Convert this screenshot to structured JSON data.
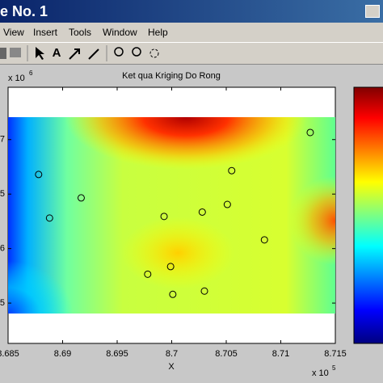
{
  "window": {
    "title": "e No. 1",
    "menu": [
      "View",
      "Insert",
      "Tools",
      "Window",
      "Help"
    ]
  },
  "chart_data": {
    "type": "scatter",
    "title": "Ket qua Kriging Do Rong",
    "x_label": "X",
    "x_multiplier": "x 10",
    "x_multiplier_power": "5",
    "y_multiplier": "x 10",
    "y_multiplier_power": "6",
    "x": [
      8.6878,
      8.6888,
      8.6917,
      8.6978,
      8.6993,
      8.6999,
      8.7001,
      8.7028,
      8.703,
      8.7051,
      8.7055,
      8.7085,
      8.7127
    ],
    "values": [
      2.36,
      1.56,
      1.93,
      0.53,
      1.59,
      0.67,
      0.16,
      1.67,
      0.22,
      1.81,
      2.43,
      1.16,
      3.13
    ],
    "xlim": [
      8.685,
      8.715
    ],
    "xticks": [
      8.685,
      8.69,
      8.695,
      8.7,
      8.705,
      8.71,
      8.715
    ],
    "ylim": [
      -0.74,
      3.96
    ],
    "yticks": [
      {
        "value": 3,
        "label": "7"
      },
      {
        "value": 2,
        "label": "5"
      },
      {
        "value": 1,
        "label": "6"
      },
      {
        "value": 0,
        "label": "5"
      }
    ],
    "marker_color": "#000000"
  }
}
